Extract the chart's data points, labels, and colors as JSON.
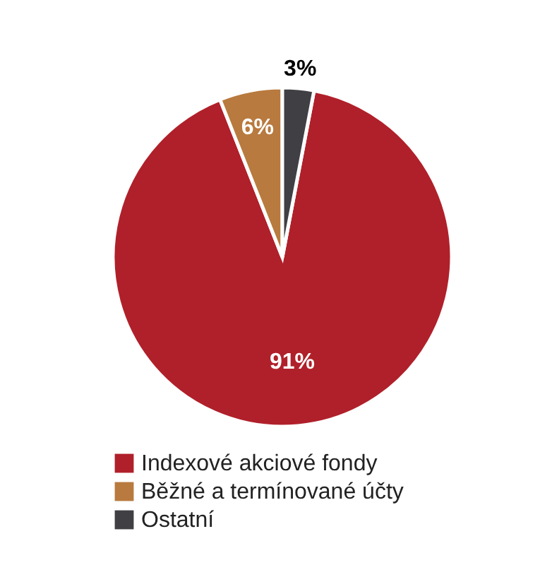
{
  "chart_data": {
    "type": "pie",
    "categories": [
      "Indexové akciové fondy",
      "Běžné a termínované účty",
      "Ostatní"
    ],
    "values": [
      91,
      6,
      3
    ],
    "colors": [
      "#b0202a",
      "#b87a3e",
      "#403f44"
    ],
    "value_labels": [
      "91%",
      "6%",
      "3%"
    ],
    "legend": "bottom"
  }
}
